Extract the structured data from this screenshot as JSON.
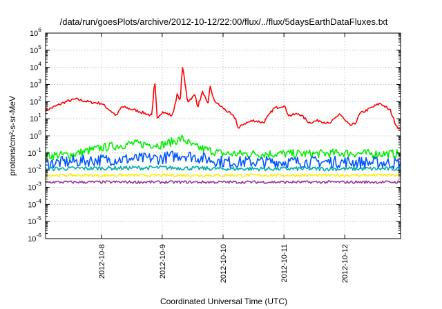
{
  "chart_data": {
    "type": "line",
    "title": "/data/run/goesPlots/archive/2012-10-12/22:00/flux/../flux/5daysEarthDataFluxes.txt",
    "xlabel": "Coordinated Universal Time (UTC)",
    "ylabel": "protons/cm²-s-sr-MeV",
    "yscale": "log",
    "xlim": [
      "2012-10-07T02:00",
      "2012-10-12T22:00"
    ],
    "ylim": [
      1e-06,
      1000000.0
    ],
    "x_ticks": [
      "2012-10-8",
      "2012-10-9",
      "2012-10-10",
      "2012-10-11",
      "2012-10-12"
    ],
    "y_ticks": [
      "10-6",
      "10-5",
      "10-4",
      "10-3",
      "10-2",
      "10-1",
      "100",
      "101",
      "102",
      "103",
      "104",
      "105",
      "106"
    ],
    "grid": true,
    "series": [
      {
        "color": "#ff0000",
        "x": [
          "2012-10-07T02:00",
          "2012-10-07T10:00",
          "2012-10-07T14:00",
          "2012-10-07T20:00",
          "2012-10-08T00:00",
          "2012-10-08T06:00",
          "2012-10-08T08:00",
          "2012-10-08T14:00",
          "2012-10-08T20:00",
          "2012-10-08T21:00",
          "2012-10-08T22:00",
          "2012-10-09T00:00",
          "2012-10-09T04:00",
          "2012-10-09T06:00",
          "2012-10-09T07:00",
          "2012-10-09T08:00",
          "2012-10-09T10:00",
          "2012-10-09T13:00",
          "2012-10-09T14:00",
          "2012-10-09T16:00",
          "2012-10-09T18:00",
          "2012-10-09T19:00",
          "2012-10-09T20:00",
          "2012-10-09T22:00",
          "2012-10-10T02:00",
          "2012-10-10T05:00",
          "2012-10-10T06:00",
          "2012-10-10T08:00",
          "2012-10-10T12:00",
          "2012-10-10T16:00",
          "2012-10-10T20:00",
          "2012-10-11T00:00",
          "2012-10-11T02:00",
          "2012-10-11T06:00",
          "2012-10-11T10:00",
          "2012-10-11T14:00",
          "2012-10-11T18:00",
          "2012-10-11T22:00",
          "2012-10-12T00:00",
          "2012-10-12T02:00",
          "2012-10-12T04:00",
          "2012-10-12T06:00",
          "2012-10-12T10:00",
          "2012-10-12T14:00",
          "2012-10-12T18:00",
          "2012-10-12T20:00",
          "2012-10-12T22:00"
        ],
        "values": [
          30,
          100,
          140,
          90,
          80,
          15,
          50,
          30,
          15,
          2000,
          12,
          25,
          15,
          300,
          80,
          12000,
          100,
          250,
          50,
          400,
          60,
          1000,
          150,
          70,
          25,
          10,
          2.5,
          5,
          8,
          6,
          40,
          60,
          15,
          20,
          6,
          8,
          5,
          20,
          8,
          4,
          5,
          20,
          40,
          80,
          30,
          5,
          2
        ]
      },
      {
        "color": "#00ee00",
        "x": [
          "2012-10-07T02:00",
          "2012-10-07T12:00",
          "2012-10-08T00:00",
          "2012-10-08T12:00",
          "2012-10-09T00:00",
          "2012-10-09T08:00",
          "2012-10-09T12:00",
          "2012-10-10T00:00",
          "2012-10-10T12:00",
          "2012-10-11T00:00",
          "2012-10-11T12:00",
          "2012-10-12T00:00",
          "2012-10-12T12:00",
          "2012-10-12T22:00"
        ],
        "values": [
          0.07,
          0.08,
          0.2,
          0.35,
          0.3,
          0.7,
          0.25,
          0.09,
          0.09,
          0.09,
          0.09,
          0.1,
          0.09,
          0.09
        ]
      },
      {
        "color": "#0055ff",
        "x": [
          "2012-10-07T02:00",
          "2012-10-08T00:00",
          "2012-10-09T00:00",
          "2012-10-09T08:00",
          "2012-10-10T00:00",
          "2012-10-11T00:00",
          "2012-10-12T00:00",
          "2012-10-12T22:00"
        ],
        "values": [
          0.025,
          0.04,
          0.05,
          0.08,
          0.03,
          0.03,
          0.03,
          0.025
        ]
      },
      {
        "color": "#00aaaa",
        "x": [
          "2012-10-07T02:00",
          "2012-10-08T00:00",
          "2012-10-09T00:00",
          "2012-10-10T00:00",
          "2012-10-11T00:00",
          "2012-10-12T00:00",
          "2012-10-12T22:00"
        ],
        "values": [
          0.012,
          0.013,
          0.014,
          0.012,
          0.012,
          0.012,
          0.012
        ]
      },
      {
        "color": "#ffee00",
        "x": [
          "2012-10-07T02:00",
          "2012-10-08T00:00",
          "2012-10-09T00:00",
          "2012-10-10T00:00",
          "2012-10-11T00:00",
          "2012-10-12T00:00",
          "2012-10-12T22:00"
        ],
        "values": [
          0.005,
          0.005,
          0.005,
          0.005,
          0.005,
          0.005,
          0.005
        ]
      },
      {
        "color": "#993399",
        "x": [
          "2012-10-07T02:00",
          "2012-10-08T00:00",
          "2012-10-09T00:00",
          "2012-10-10T00:00",
          "2012-10-11T00:00",
          "2012-10-12T00:00",
          "2012-10-12T22:00"
        ],
        "values": [
          0.002,
          0.002,
          0.002,
          0.002,
          0.002,
          0.002,
          0.002
        ]
      }
    ]
  }
}
